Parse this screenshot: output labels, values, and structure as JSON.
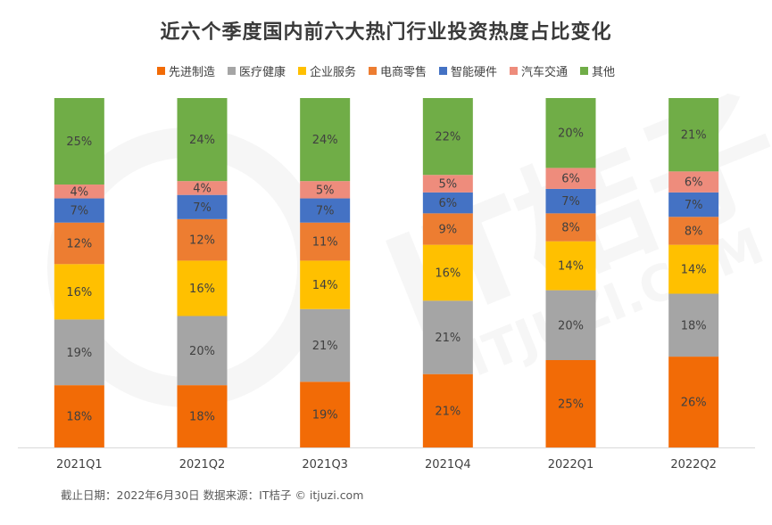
{
  "watermark": {
    "brand_text": "IT桔子",
    "site_text": "ITJUZI.COM"
  },
  "footer": {
    "note": "截止日期：2022年6月30日    数据来源：IT桔子 © itjuzi.com"
  },
  "chart_data": {
    "type": "bar",
    "stacked": true,
    "title": "近六个季度国内前六大热门行业投资热度占比变化",
    "xlabel": "",
    "ylabel": "",
    "ylim": [
      0,
      100
    ],
    "grid": false,
    "legend_position": "top",
    "categories": [
      "2021Q1",
      "2021Q2",
      "2021Q3",
      "2021Q4",
      "2022Q1",
      "2022Q2"
    ],
    "series": [
      {
        "name": "先进制造",
        "color": "#f26b06",
        "values": [
          18,
          18,
          19,
          21,
          25,
          26
        ]
      },
      {
        "name": "医疗健康",
        "color": "#a5a5a5",
        "values": [
          19,
          20,
          21,
          21,
          20,
          18
        ]
      },
      {
        "name": "企业服务",
        "color": "#ffc000",
        "values": [
          16,
          16,
          14,
          16,
          14,
          14
        ]
      },
      {
        "name": "电商零售",
        "color": "#ed7d31",
        "values": [
          12,
          12,
          11,
          9,
          8,
          8
        ]
      },
      {
        "name": "智能硬件",
        "color": "#4472c4",
        "values": [
          7,
          7,
          7,
          6,
          7,
          7
        ]
      },
      {
        "name": "汽车交通",
        "color": "#ee8c7c",
        "values": [
          4,
          4,
          5,
          5,
          6,
          6
        ]
      },
      {
        "name": "其他",
        "color": "#70ad47",
        "values": [
          25,
          24,
          24,
          22,
          20,
          21
        ]
      }
    ],
    "label_suffix": "%"
  }
}
